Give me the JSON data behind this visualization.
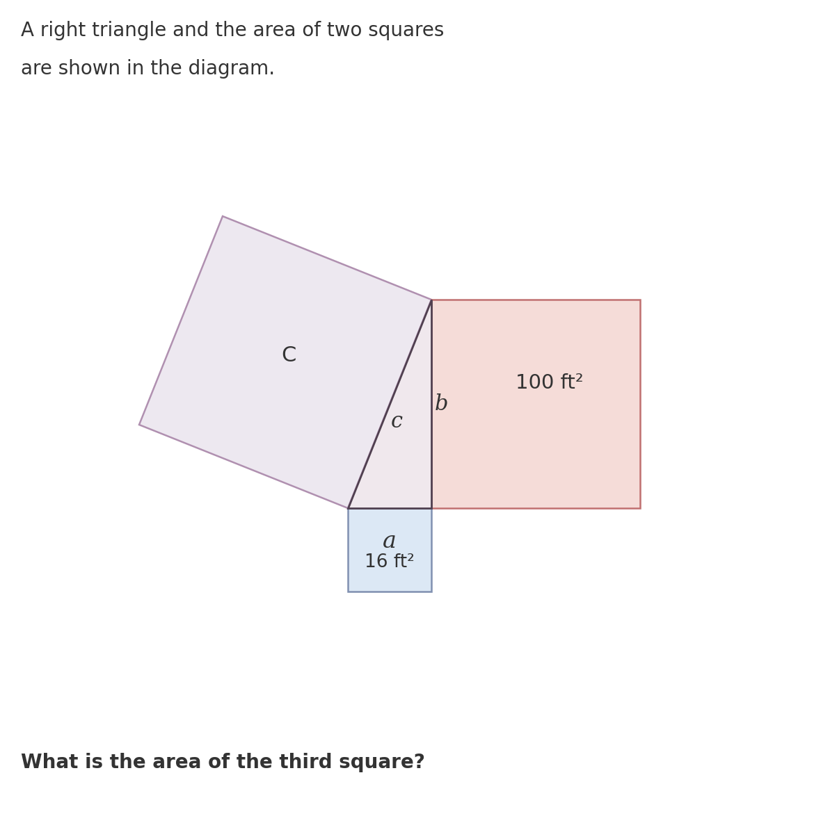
{
  "title_line1": "A right triangle and the area of two squares",
  "title_line2": "are shown in the diagram.",
  "question": "What is the area of the third square?",
  "label_a": "16 ft²",
  "label_b": "100 ft²",
  "label_c_big": "C",
  "label_c_italic": "c",
  "label_b_italic": "b",
  "label_a_italic": "a",
  "bg_color": "#ffffff",
  "square_a_fill": "#dce8f5",
  "square_a_edge": "#8090b0",
  "square_b_fill": "#f5dcd8",
  "square_b_edge": "#c07070",
  "square_c_fill": "#ede8f0",
  "square_c_edge": "#b090b0",
  "triangle_fill": "#f0e8ed",
  "triangle_edge": "#504050",
  "title_fontsize": 20,
  "question_fontsize": 20,
  "label_fontsize": 19,
  "side_label_fontsize": 20
}
